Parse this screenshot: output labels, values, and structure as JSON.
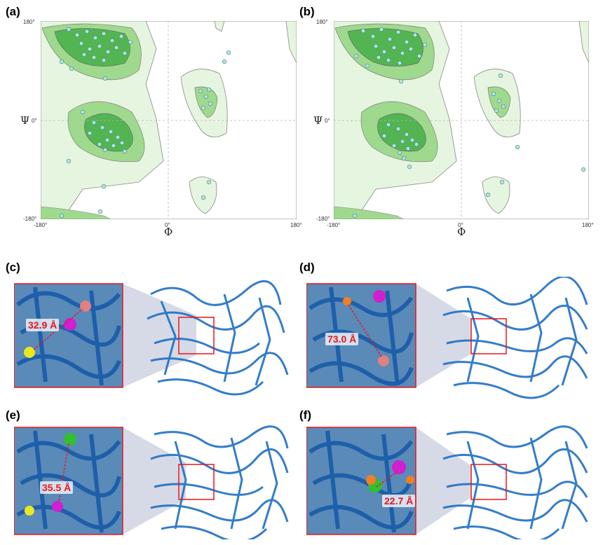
{
  "figure": {
    "panels": [
      {
        "label": "(a)"
      },
      {
        "label": "(b)"
      },
      {
        "label": "(c)",
        "distance": "32.9 Å"
      },
      {
        "label": "(d)",
        "distance": "73.0 Å"
      },
      {
        "label": "(e)",
        "distance": "35.5 Å"
      },
      {
        "label": "(f)",
        "distance": "22.7 Å"
      }
    ],
    "ramachandran": {
      "x_symbol": "Φ",
      "y_symbol": "Ψ",
      "x_ticks": [
        "-180°",
        "0°",
        "180°"
      ],
      "y_ticks": [
        "180°",
        "0°",
        "-180°"
      ]
    },
    "colors": {
      "allowed_region": "#e6f5df",
      "favored_region": "#9fd98e",
      "core_region": "#52b552",
      "residue_point": "#b6e3e0",
      "protein_ribbon": "#1f6fc4",
      "highlight_box": "#e8171b",
      "zoom_wedge": "#c5cbdc",
      "distance_text": "#e8171b"
    }
  }
}
